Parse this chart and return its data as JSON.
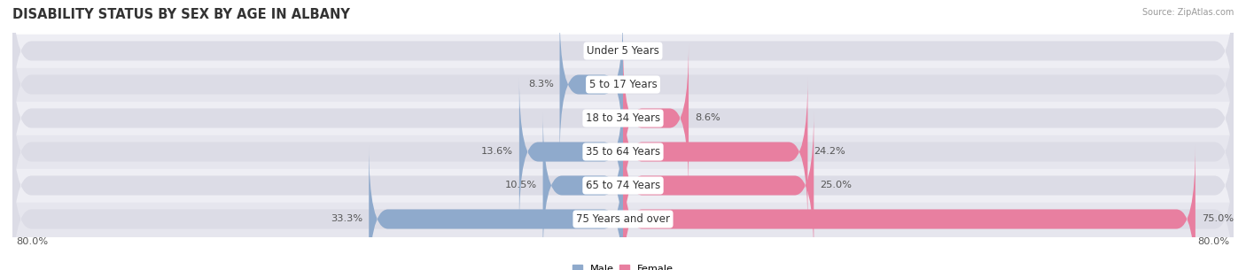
{
  "title": "DISABILITY STATUS BY SEX BY AGE IN ALBANY",
  "source": "Source: ZipAtlas.com",
  "categories": [
    "Under 5 Years",
    "5 to 17 Years",
    "18 to 34 Years",
    "35 to 64 Years",
    "65 to 74 Years",
    "75 Years and over"
  ],
  "male_values": [
    0.0,
    8.3,
    0.0,
    13.6,
    10.5,
    33.3
  ],
  "female_values": [
    0.0,
    0.0,
    8.6,
    24.2,
    25.0,
    75.0
  ],
  "male_color": "#8faacc",
  "female_color": "#e87fa0",
  "bg_bar_color": "#dcdce6",
  "row_bg_even": "#eeeef4",
  "row_bg_odd": "#e6e6ee",
  "xlim": 80.0,
  "title_fontsize": 10.5,
  "label_fontsize": 8.2,
  "cat_fontsize": 8.5,
  "bar_height": 0.58,
  "background_color": "#ffffff",
  "label_color": "#555555",
  "cat_label_color": "#333333"
}
